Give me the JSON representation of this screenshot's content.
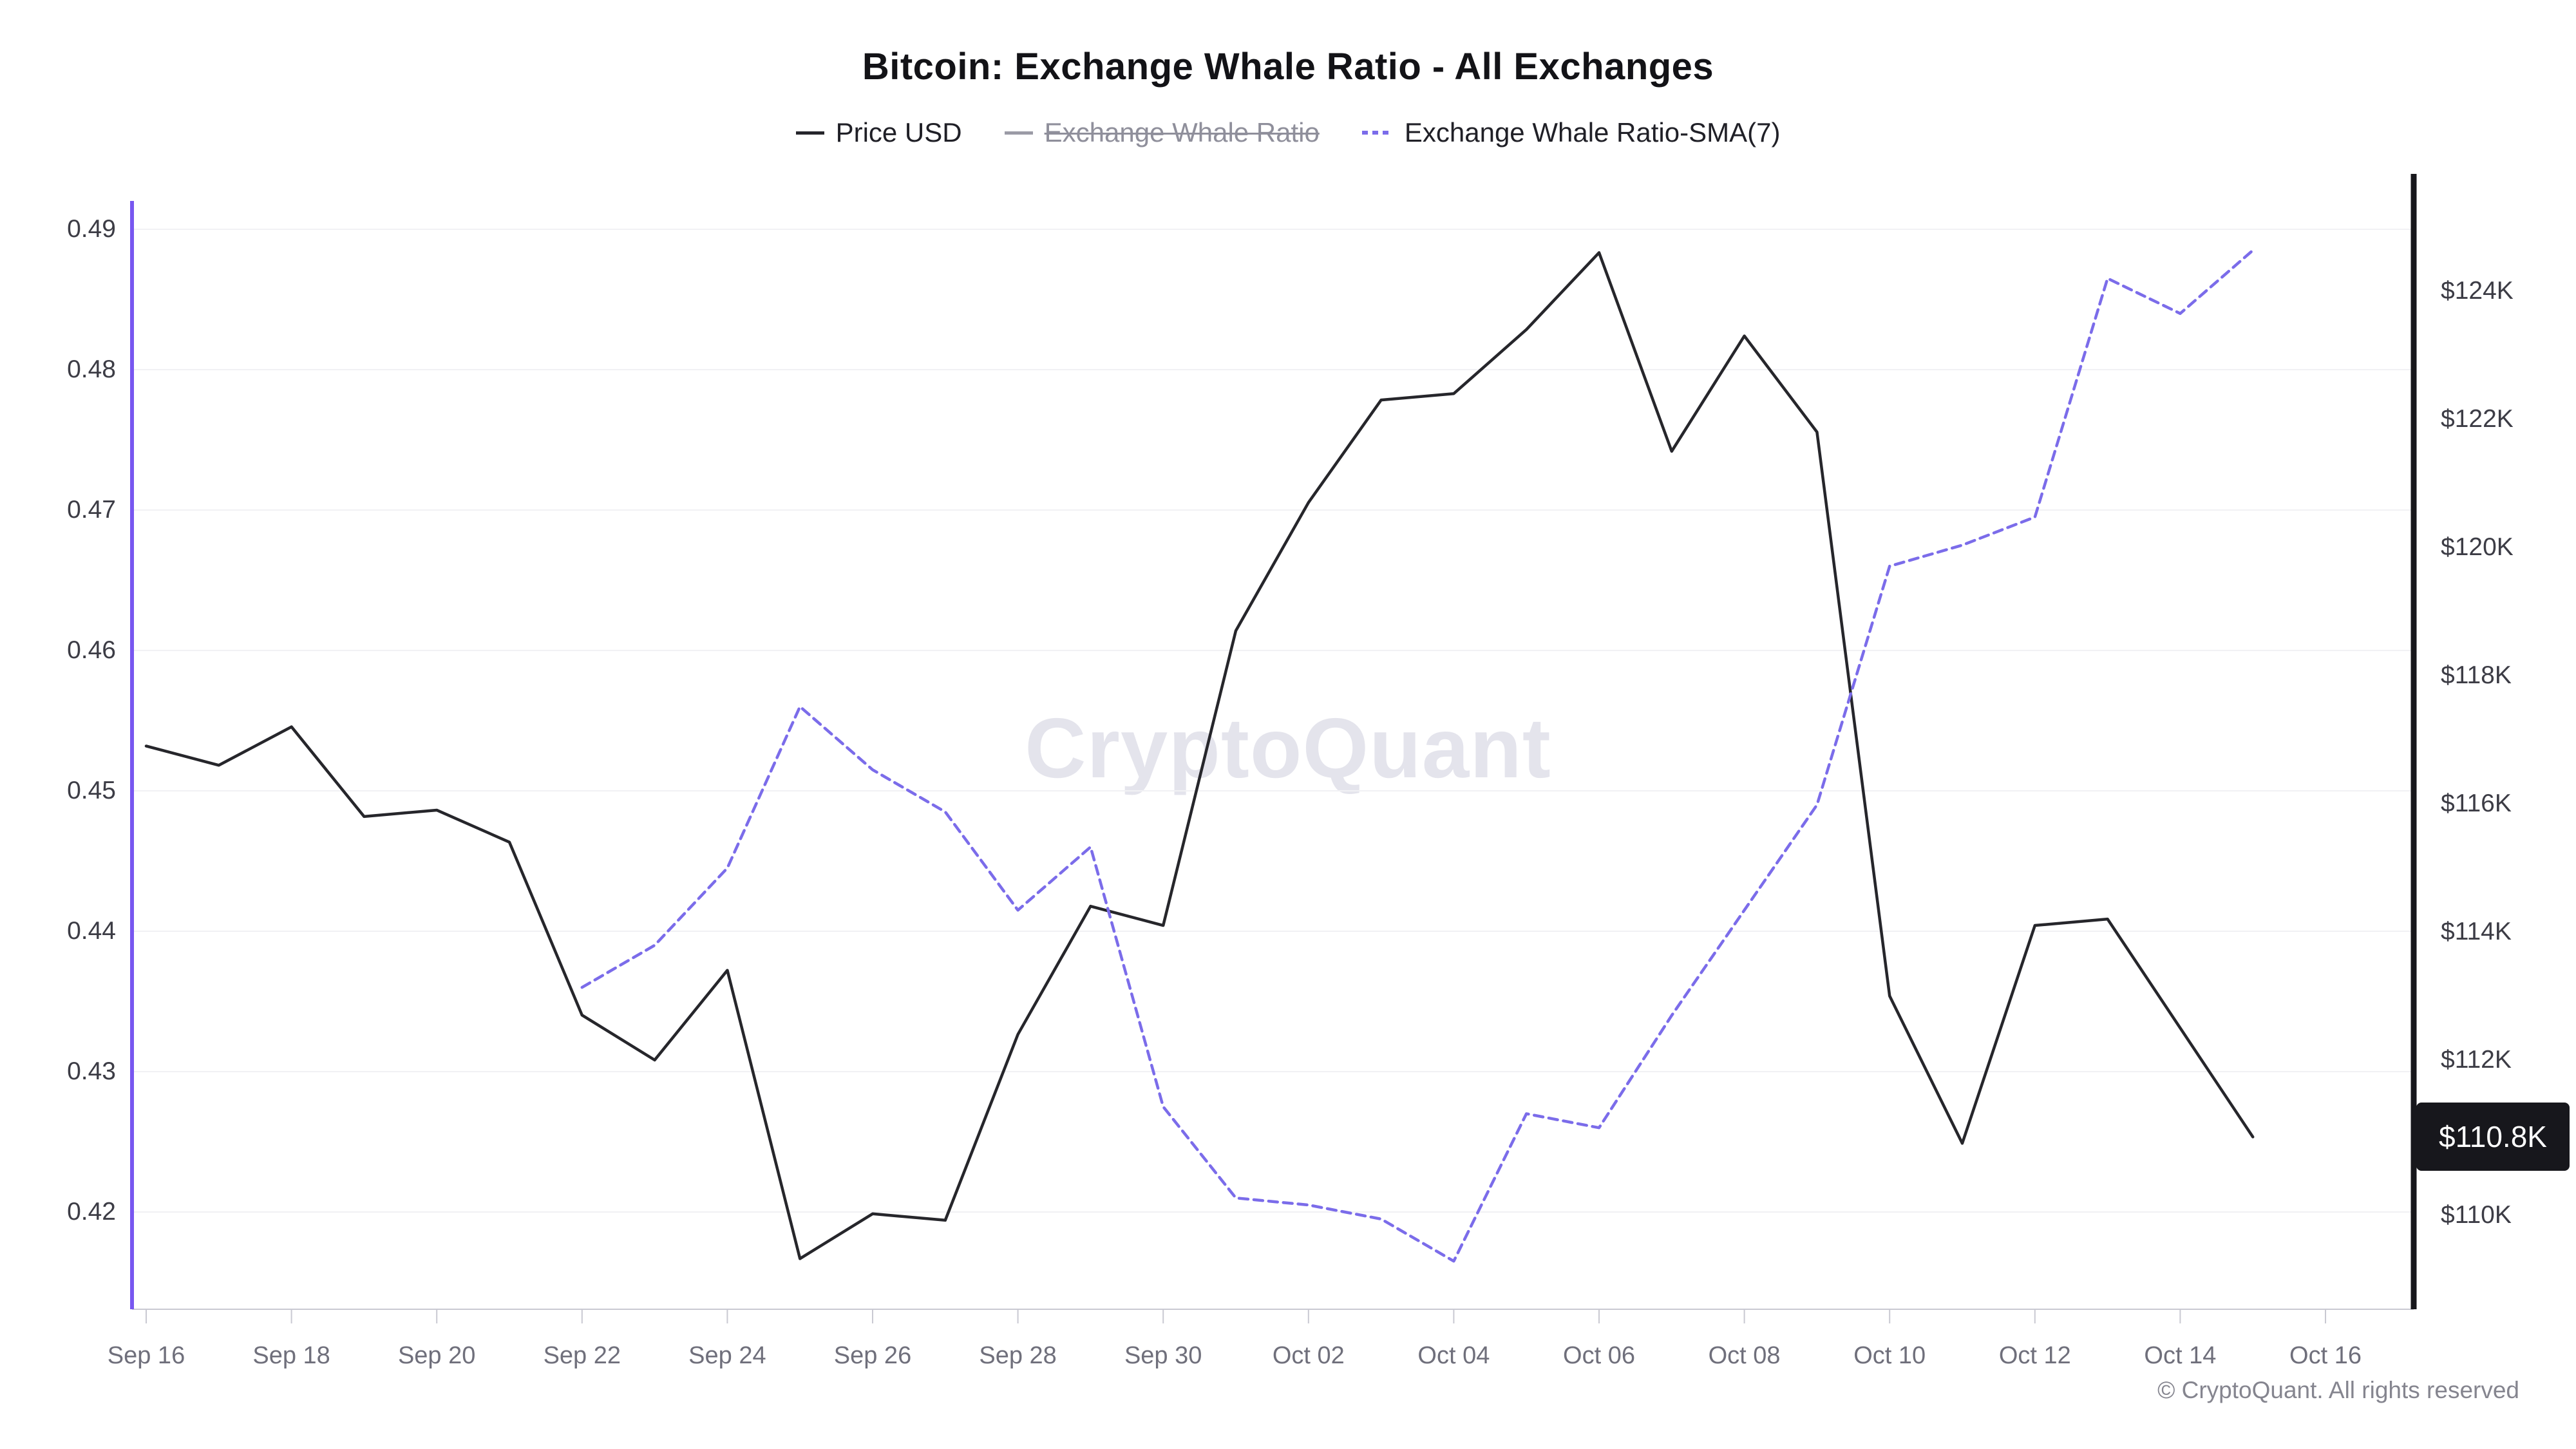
{
  "title": "Bitcoin: Exchange Whale Ratio - All Exchanges",
  "watermark": "CryptoQuant",
  "footer": "© CryptoQuant. All rights reserved",
  "last_price_badge": "$110.8K",
  "colors": {
    "price_line": "#26262b",
    "ratio_disabled": "#9b9ba6",
    "sma_line": "#7b6cea",
    "left_axis_line": "#7857f0",
    "right_axis_line": "#17171c",
    "gridline": "#f1f1f4",
    "bottom_axis": "#c9c9d2",
    "badge_bg": "#17171c",
    "badge_text": "#ffffff"
  },
  "legend": {
    "items": [
      {
        "label": "Price USD",
        "color": "#26262b",
        "style": "solid",
        "disabled": false
      },
      {
        "label": "Exchange Whale Ratio",
        "color": "#9b9ba6",
        "style": "solid",
        "disabled": true
      },
      {
        "label": "Exchange Whale Ratio-SMA(7)",
        "color": "#7b6cea",
        "style": "dashed",
        "disabled": false
      }
    ]
  },
  "chart_data": {
    "type": "line",
    "title": "Bitcoin: Exchange Whale Ratio - All Exchanges",
    "grid": "horizontal",
    "legend_position": "top",
    "x_dates": [
      "Sep 16",
      "Sep 17",
      "Sep 18",
      "Sep 19",
      "Sep 20",
      "Sep 21",
      "Sep 22",
      "Sep 23",
      "Sep 24",
      "Sep 25",
      "Sep 26",
      "Sep 27",
      "Sep 28",
      "Sep 29",
      "Sep 30",
      "Oct 01",
      "Oct 02",
      "Oct 03",
      "Oct 04",
      "Oct 05",
      "Oct 06",
      "Oct 07",
      "Oct 08",
      "Oct 09",
      "Oct 10",
      "Oct 11",
      "Oct 12",
      "Oct 13",
      "Oct 14",
      "Oct 15"
    ],
    "x_tick_labels": [
      "Sep 16",
      "Sep 18",
      "Sep 20",
      "Sep 22",
      "Sep 24",
      "Sep 26",
      "Sep 28",
      "Sep 30",
      "Oct 02",
      "Oct 04",
      "Oct 06",
      "Oct 08",
      "Oct 10",
      "Oct 12",
      "Oct 14",
      "Oct 16"
    ],
    "x_tick_day_step": 2,
    "left_axis": {
      "title": "Exchange Whale Ratio",
      "scale": "linear",
      "ticks": [
        "0.49",
        "0.48",
        "0.47",
        "0.46",
        "0.45",
        "0.44",
        "0.43",
        "0.42"
      ],
      "values": [
        0.49,
        0.48,
        0.47,
        0.46,
        0.45,
        0.44,
        0.43,
        0.42
      ]
    },
    "right_axis": {
      "title": "Price USD",
      "scale": "linear",
      "ticks": [
        "$124K",
        "$122K",
        "$120K",
        "$118K",
        "$116K",
        "$114K",
        "$112K",
        "$110K"
      ],
      "values": [
        124,
        122,
        120,
        118,
        116,
        114,
        112,
        110
      ]
    },
    "series": [
      {
        "name": "Price USD",
        "axis": "right",
        "unit": "thousand USD",
        "color": "#26262b",
        "style": "solid",
        "disabled": false,
        "values": [
          116.9,
          116.6,
          117.2,
          115.8,
          115.9,
          115.4,
          112.7,
          112.0,
          113.4,
          108.9,
          109.6,
          109.5,
          112.4,
          114.4,
          114.1,
          118.7,
          120.7,
          122.3,
          122.4,
          123.4,
          124.6,
          121.5,
          123.3,
          121.8,
          113.0,
          110.7,
          114.1,
          114.2,
          112.5,
          110.8
        ]
      },
      {
        "name": "Exchange Whale Ratio",
        "axis": "left",
        "color": "#9b9ba6",
        "style": "solid",
        "disabled": true,
        "values": null
      },
      {
        "name": "Exchange Whale Ratio-SMA(7)",
        "axis": "left",
        "color": "#7b6cea",
        "style": "dashed",
        "disabled": false,
        "values": [
          null,
          null,
          null,
          null,
          null,
          null,
          0.436,
          0.439,
          0.4445,
          0.456,
          0.4515,
          0.4485,
          0.4415,
          0.446,
          0.4275,
          0.421,
          0.4205,
          0.4195,
          0.4165,
          0.427,
          0.426,
          0.434,
          0.4415,
          0.449,
          0.466,
          0.4675,
          0.4695,
          0.4865,
          0.484,
          0.4885
        ]
      }
    ],
    "last_value_badge": {
      "series": "Price USD",
      "text": "$110.8K",
      "value": 110.8
    }
  }
}
